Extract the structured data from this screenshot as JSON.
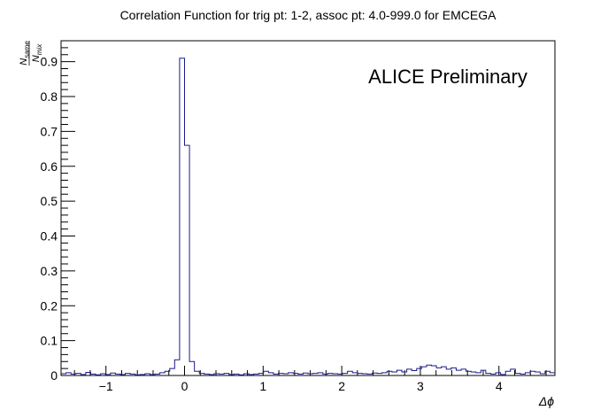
{
  "chart_data": {
    "type": "histogram",
    "title": "Correlation Function for trig pt: 1-2, assoc pt: 4.0-999.0 for EMCEGA",
    "annotation": "ALICE Preliminary",
    "xlabel": "Δϕ",
    "ylabel": {
      "numerator": "N",
      "numerator_sub": "same",
      "denominator": "N",
      "denominator_sub": "mix"
    },
    "xlim": [
      -1.5708,
      4.7124
    ],
    "ylim": [
      0,
      0.96
    ],
    "x_ticks": [
      {
        "value": -1,
        "label": "−1"
      },
      {
        "value": 0,
        "label": "0"
      },
      {
        "value": 1,
        "label": "1"
      },
      {
        "value": 2,
        "label": "2"
      },
      {
        "value": 3,
        "label": "3"
      },
      {
        "value": 4,
        "label": "4"
      }
    ],
    "y_ticks": [
      {
        "value": 0,
        "label": "0"
      },
      {
        "value": 0.1,
        "label": "0.1"
      },
      {
        "value": 0.2,
        "label": "0.2"
      },
      {
        "value": 0.3,
        "label": "0.3"
      },
      {
        "value": 0.4,
        "label": "0.4"
      },
      {
        "value": 0.5,
        "label": "0.5"
      },
      {
        "value": 0.6,
        "label": "0.6"
      },
      {
        "value": 0.7,
        "label": "0.7"
      },
      {
        "value": 0.8,
        "label": "0.8"
      },
      {
        "value": 0.9,
        "label": "0.9"
      }
    ],
    "grid": false,
    "line_color": "#1a1a8c",
    "bins": 100,
    "values": [
      0.005,
      0.008,
      0.004,
      0.006,
      0.003,
      0.009,
      0.004,
      0.002,
      0.005,
      0.003,
      0.007,
      0.004,
      0.003,
      0.006,
      0.004,
      0.002,
      0.003,
      0.005,
      0.003,
      0.004,
      0.008,
      0.012,
      0.02,
      0.045,
      0.91,
      0.66,
      0.04,
      0.012,
      0.006,
      0.004,
      0.003,
      0.005,
      0.004,
      0.006,
      0.003,
      0.004,
      0.002,
      0.005,
      0.003,
      0.004,
      0.006,
      0.012,
      0.008,
      0.004,
      0.006,
      0.005,
      0.008,
      0.006,
      0.004,
      0.007,
      0.005,
      0.006,
      0.008,
      0.004,
      0.006,
      0.005,
      0.004,
      0.006,
      0.012,
      0.008,
      0.006,
      0.005,
      0.004,
      0.007,
      0.006,
      0.008,
      0.012,
      0.01,
      0.015,
      0.01,
      0.018,
      0.014,
      0.02,
      0.025,
      0.03,
      0.028,
      0.022,
      0.025,
      0.018,
      0.022,
      0.015,
      0.018,
      0.012,
      0.01,
      0.008,
      0.015,
      0.006,
      0.004,
      0.008,
      0.003,
      0.012,
      0.018,
      0.006,
      0.004,
      0.008,
      0.012,
      0.01,
      0.005,
      0.012,
      0.008
    ]
  }
}
